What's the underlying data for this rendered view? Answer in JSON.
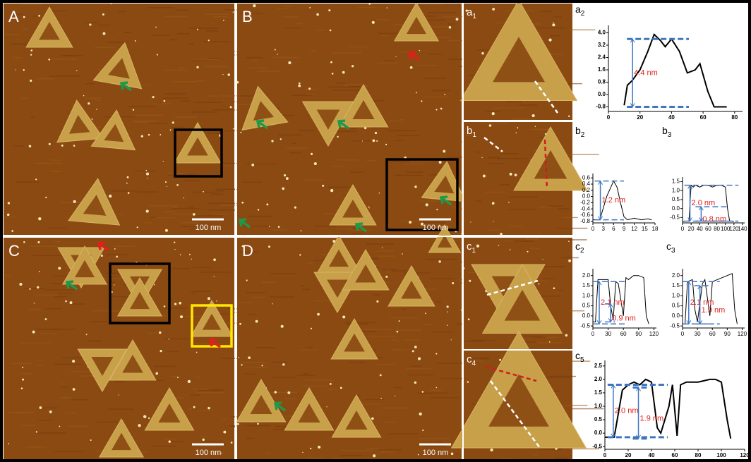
{
  "panels": [
    {
      "label": "A",
      "scale_bar": "100 nm"
    },
    {
      "label": "B",
      "scale_bar": "100 nm"
    },
    {
      "label": "C",
      "scale_bar": "100 nm"
    },
    {
      "label": "D",
      "scale_bar": "100 nm"
    }
  ],
  "insets": [
    {
      "label": "a",
      "sub": "1"
    },
    {
      "label": "b",
      "sub": "1"
    },
    {
      "label": "c",
      "sub": "1"
    },
    {
      "label": "c",
      "sub": "4"
    }
  ],
  "profiles": [
    {
      "label": "a",
      "sub": "2",
      "xlim": [
        0,
        85
      ],
      "xticks": [
        0,
        20,
        40,
        60,
        80
      ],
      "ylim": [
        -1.1,
        4.3
      ],
      "yticks": [
        {
          "value": 4,
          "label": "4.0"
        },
        3.2,
        2.4,
        1.6,
        0.8,
        {
          "value": 0,
          "label": "0.0"
        },
        -0.8
      ],
      "x": [
        10,
        12,
        15,
        20,
        25,
        29,
        33,
        36,
        40,
        45,
        50,
        55,
        58,
        63,
        67,
        75
      ],
      "values": [
        -0.7,
        0.6,
        0.9,
        1.6,
        2.8,
        3.9,
        3.5,
        3.1,
        3.6,
        2.8,
        1.4,
        1.6,
        2.0,
        0.2,
        -0.8,
        -0.8
      ],
      "annotations": [
        {
          "text": "4.4 nm",
          "levels": [
            3.6,
            -0.8
          ]
        }
      ]
    },
    {
      "label": "b",
      "sub": "2",
      "xlim": [
        0,
        18
      ],
      "xticks": [
        0,
        3,
        6,
        9,
        12,
        15,
        18
      ],
      "ylim": [
        -0.85,
        0.65
      ],
      "yticks": [
        0.6,
        0.4,
        0.2,
        {
          "value": 0,
          "label": "0.0"
        },
        -0.2,
        -0.4,
        -0.6,
        -0.8
      ],
      "x": [
        0,
        2,
        4,
        6,
        7,
        8,
        9,
        10,
        12,
        14,
        16,
        17
      ],
      "values": [
        -0.75,
        -0.75,
        0.0,
        0.5,
        0.3,
        -0.2,
        -0.65,
        -0.75,
        -0.7,
        -0.75,
        -0.72,
        -0.75
      ],
      "annotations": [
        {
          "text": "1.2 nm",
          "levels": [
            0.5,
            -0.75
          ]
        }
      ]
    },
    {
      "label": "b",
      "sub": "3",
      "xlim": [
        0,
        145
      ],
      "xticks": [
        0,
        20,
        40,
        60,
        80,
        100,
        120,
        140
      ],
      "ylim": [
        -0.8,
        1.6
      ],
      "yticks": [
        1.5,
        {
          "value": 1,
          "label": "1.0"
        },
        0.5,
        {
          "value": 0,
          "label": "0.0"
        },
        -0.5
      ],
      "x": [
        0,
        15,
        20,
        25,
        30,
        40,
        50,
        60,
        70,
        80,
        90,
        100,
        105,
        110,
        120
      ],
      "values": [
        -0.7,
        -0.7,
        1.3,
        1.2,
        1.3,
        1.2,
        1.3,
        1.3,
        1.2,
        1.3,
        1.3,
        1.2,
        0.0,
        -0.7,
        -0.7
      ],
      "annotations": [
        {
          "text": "2.0 nm",
          "levels": [
            1.3,
            -0.7
          ]
        },
        {
          "text": "0.8 nm",
          "levels": [
            0.1,
            -0.7
          ]
        }
      ]
    },
    {
      "label": "c",
      "sub": "2",
      "xlim": [
        0,
        125
      ],
      "xticks": [
        0,
        30,
        60,
        90,
        120
      ],
      "ylim": [
        -0.6,
        2.2
      ],
      "yticks": [
        {
          "value": 2,
          "label": "2.0"
        },
        1.5,
        {
          "value": 1,
          "label": "1.0"
        },
        0.5,
        {
          "value": 0,
          "label": "0.0"
        },
        -0.5
      ],
      "x": [
        0,
        5,
        10,
        20,
        30,
        35,
        40,
        45,
        50,
        60,
        65,
        70,
        80,
        90,
        100,
        105,
        110
      ],
      "values": [
        -0.3,
        -0.3,
        1.8,
        1.8,
        1.8,
        0.5,
        -0.2,
        1.7,
        1.6,
        0.0,
        1.9,
        1.8,
        2.0,
        2.0,
        1.9,
        0.0,
        -0.4
      ],
      "annotations": [
        {
          "text": "2.1 nm",
          "levels": [
            1.7,
            -0.4
          ]
        },
        {
          "text": "0.9 nm",
          "levels": [
            0.6,
            -0.3
          ]
        }
      ]
    },
    {
      "label": "c",
      "sub": "3",
      "xlim": [
        0,
        125
      ],
      "xticks": [
        0,
        30,
        60,
        90,
        120
      ],
      "ylim": [
        -0.6,
        2.2
      ],
      "yticks": [
        {
          "value": 2,
          "label": "2.0"
        },
        1.5,
        {
          "value": 1,
          "label": "1.0"
        },
        0.5,
        {
          "value": 0,
          "label": "0.0"
        },
        -0.5
      ],
      "x": [
        0,
        5,
        10,
        20,
        25,
        30,
        40,
        45,
        55,
        60,
        70,
        80,
        90,
        100,
        105,
        110
      ],
      "values": [
        -0.4,
        -0.4,
        1.7,
        1.8,
        0.3,
        -0.3,
        1.6,
        1.8,
        0.0,
        1.7,
        1.8,
        1.9,
        2.0,
        2.1,
        0.3,
        -0.4
      ],
      "annotations": [
        {
          "text": "2.1 nm",
          "levels": [
            1.7,
            -0.4
          ]
        },
        {
          "text": "1.9 nm",
          "levels": [
            1.5,
            -0.4
          ]
        }
      ]
    },
    {
      "label": "c",
      "sub": "5",
      "xlim": [
        0,
        120
      ],
      "xticks": [
        0,
        20,
        40,
        60,
        80,
        100,
        120
      ],
      "ylim": [
        -0.6,
        2.6
      ],
      "yticks": [
        2.5,
        {
          "value": 2,
          "label": "2.0"
        },
        1.5,
        {
          "value": 1,
          "label": "1.0"
        },
        0.5,
        {
          "value": 0,
          "label": "0.0"
        },
        -0.5
      ],
      "x": [
        0,
        8,
        15,
        20,
        25,
        30,
        35,
        40,
        45,
        48,
        55,
        58,
        62,
        65,
        70,
        80,
        90,
        95,
        100,
        105,
        108
      ],
      "values": [
        -0.15,
        -0.15,
        1.6,
        1.8,
        1.9,
        1.8,
        2.0,
        1.9,
        0.2,
        0.0,
        1.0,
        1.8,
        -0.1,
        1.8,
        1.9,
        1.9,
        2.0,
        2.0,
        1.9,
        0.5,
        -0.2
      ],
      "annotations": [
        {
          "text": "2.0 nm",
          "levels": [
            1.8,
            -0.15
          ]
        },
        {
          "text": "1.9 nm",
          "levels": [
            1.7,
            -0.2
          ]
        }
      ]
    }
  ]
}
